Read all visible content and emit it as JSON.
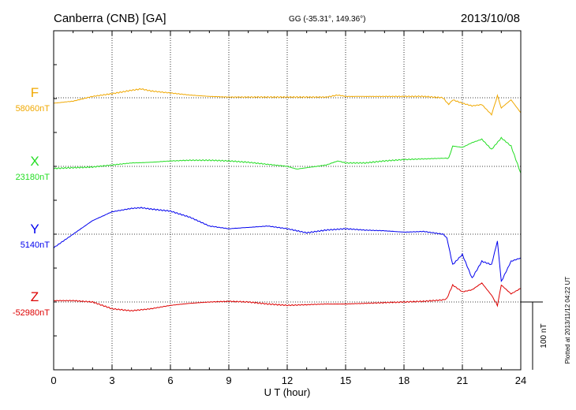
{
  "header": {
    "station": "Canberra (CNB)  [GA]",
    "coords": "GG (-35.31°, 149.36°)",
    "date": "2013/10/08"
  },
  "footer": {
    "plotted": "Plotted at 2013/11/12 04:22 UT",
    "scale_label": "100 nT"
  },
  "chart_data": {
    "type": "line",
    "xlabel": "U T (hour)",
    "xlim": [
      0,
      24
    ],
    "xticks": [
      "0",
      "3",
      "6",
      "9",
      "12",
      "15",
      "18",
      "21",
      "24"
    ],
    "scale_nT": 100,
    "grid": true,
    "series": [
      {
        "name": "F",
        "baseline": "58060nT",
        "color": "#f0a800",
        "x": [
          0,
          1,
          2,
          3,
          4,
          4.5,
          5,
          6,
          7,
          8,
          9,
          10,
          11,
          12,
          13,
          14,
          14.6,
          15,
          16,
          17,
          18,
          19,
          20,
          20.3,
          20.5,
          21,
          21.5,
          22,
          22.5,
          22.8,
          23,
          23.5,
          24
        ],
        "values": [
          -8,
          -5,
          2,
          6,
          11,
          13,
          10,
          7,
          4,
          2,
          1,
          1,
          1,
          1,
          1,
          1,
          4,
          2,
          2,
          2,
          2,
          2,
          0,
          -10,
          -3,
          -8,
          -12,
          -10,
          -25,
          3,
          -15,
          -3,
          -22
        ]
      },
      {
        "name": "X",
        "baseline": "23180nT",
        "color": "#22dd22",
        "x": [
          0,
          1,
          2,
          3,
          4,
          5,
          6,
          7,
          8,
          9,
          10,
          11,
          12,
          12.5,
          13,
          14,
          14.6,
          15,
          16,
          17,
          18,
          19,
          20,
          20.3,
          20.5,
          21,
          21.5,
          22,
          22.5,
          23,
          23.5,
          24
        ],
        "values": [
          -3,
          -2,
          -1,
          2,
          5,
          6,
          8,
          9,
          9,
          8,
          6,
          3,
          0,
          -4,
          -2,
          2,
          8,
          5,
          5,
          8,
          10,
          11,
          12,
          12,
          30,
          28,
          35,
          40,
          25,
          42,
          30,
          -10
        ]
      },
      {
        "name": "Y",
        "baseline": "5140nT",
        "color": "#0000ee",
        "x": [
          0,
          1,
          2,
          3,
          4,
          4.5,
          5,
          6,
          7,
          8,
          9,
          10,
          11,
          12,
          13,
          14,
          15,
          16,
          17,
          18,
          19,
          20,
          20.2,
          20.5,
          21,
          21.5,
          22,
          22.5,
          22.8,
          23,
          23.5,
          24
        ],
        "values": [
          -20,
          0,
          20,
          33,
          38,
          39,
          37,
          34,
          25,
          12,
          8,
          10,
          12,
          8,
          2,
          6,
          8,
          6,
          5,
          3,
          4,
          0,
          -5,
          -45,
          -30,
          -65,
          -40,
          -45,
          -10,
          -70,
          -40,
          -35
        ]
      },
      {
        "name": "Z",
        "baseline": "-52980nT",
        "color": "#dd0000",
        "x": [
          0,
          1,
          2,
          3,
          4,
          5,
          6,
          7,
          8,
          9,
          10,
          11,
          12,
          13,
          14,
          15,
          16,
          17,
          18,
          19,
          20,
          20.2,
          20.5,
          21,
          21.5,
          22,
          22.5,
          22.8,
          23,
          23.5,
          24
        ],
        "values": [
          2,
          2,
          0,
          -10,
          -13,
          -10,
          -5,
          -2,
          0,
          1,
          0,
          -3,
          -5,
          -4,
          -3,
          -3,
          -2,
          -1,
          0,
          1,
          3,
          5,
          25,
          15,
          18,
          28,
          10,
          -5,
          25,
          12,
          20
        ]
      }
    ]
  }
}
